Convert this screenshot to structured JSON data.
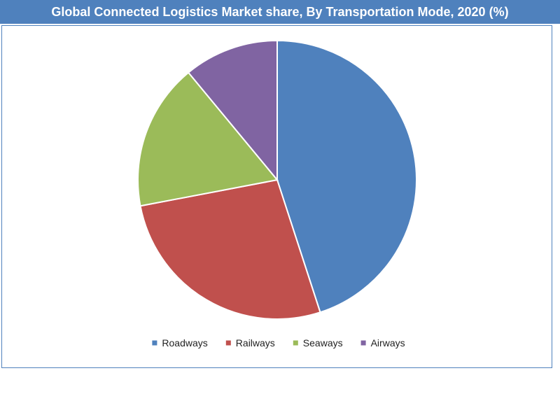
{
  "title": "Global Connected Logistics Market share, By Transportation Mode, 2020 (%)",
  "chart_data": {
    "type": "pie",
    "title": "Global Connected Logistics Market share, By Transportation Mode, 2020 (%)",
    "categories": [
      "Roadways",
      "Railways",
      "Seaways",
      "Airways"
    ],
    "values": [
      45,
      27,
      17,
      11
    ],
    "unit": "%",
    "colors": [
      "#4f81bd",
      "#c0504d",
      "#9bbb59",
      "#8064a2"
    ],
    "start_angle": "12 o'clock",
    "direction": "clockwise",
    "legend_position": "bottom"
  }
}
